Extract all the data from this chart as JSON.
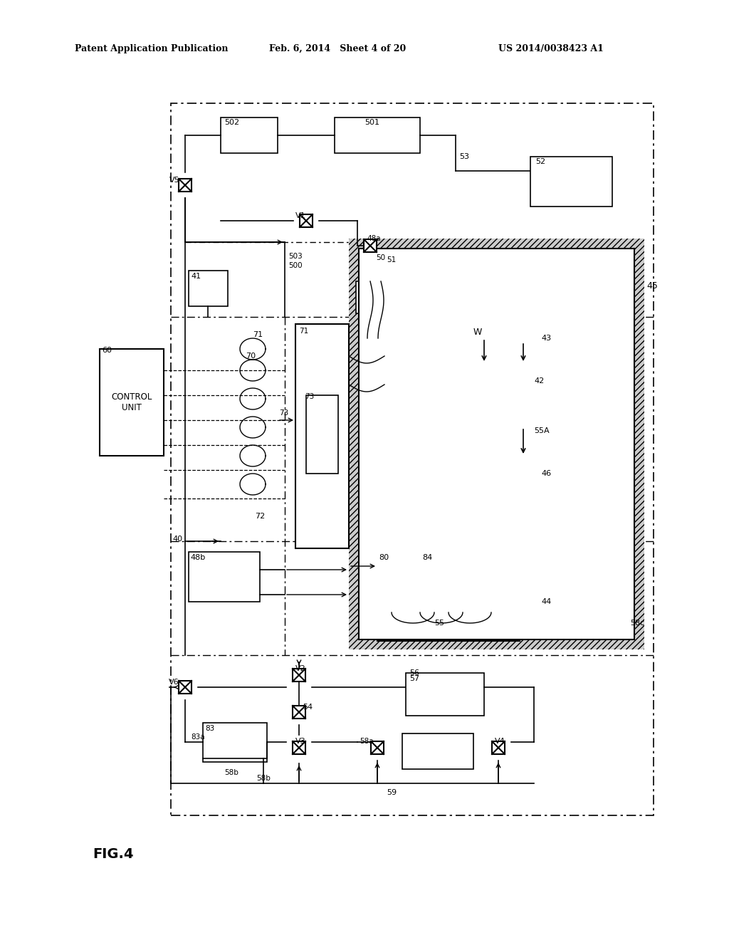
{
  "bg_color": "#ffffff",
  "header_left": "Patent Application Publication",
  "header_mid": "Feb. 6, 2014   Sheet 4 of 20",
  "header_right": "US 2014/0038423 A1",
  "fig_label": "FIG.4"
}
